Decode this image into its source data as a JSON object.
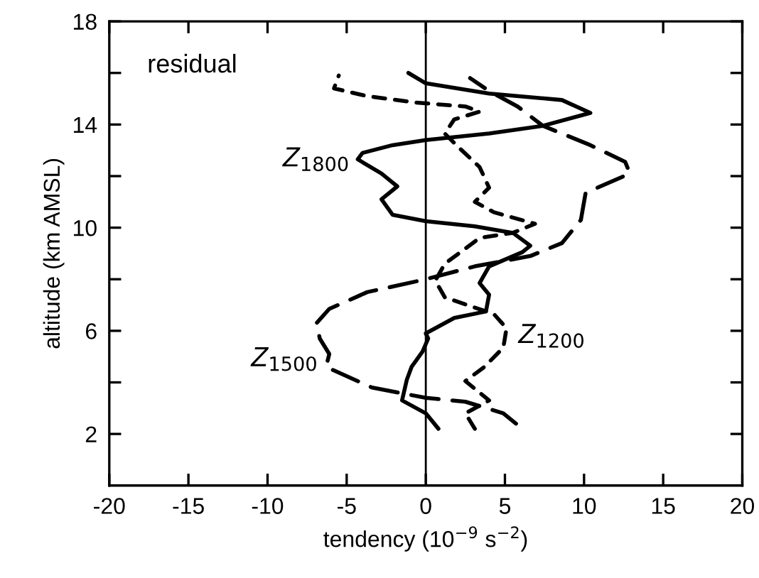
{
  "chart_data": {
    "type": "line",
    "xlabel": "tendency (10$^{−9}$ s$^{−2}$)",
    "ylabel": "altitude (km AMSL)",
    "xlim": [
      -20,
      20
    ],
    "xticks": [
      -20,
      -15,
      -10,
      -5,
      0,
      5,
      10,
      15,
      20
    ],
    "ylim": [
      0,
      18
    ],
    "yticks": [
      2,
      {
        "value": 4,
        "label": null
      },
      6,
      {
        "value": 8,
        "label": null
      },
      10,
      {
        "value": 12,
        "label": null
      },
      14,
      {
        "value": 16,
        "label": null
      },
      18
    ],
    "grid": false,
    "marker": "none",
    "ref_lines": [
      {
        "axis": "x",
        "value": 0,
        "color": "#000000",
        "line_style": "solid"
      }
    ],
    "annotations": [
      "residual",
      {
        "text": "Z$_{1800}$",
        "x": -4.3,
        "y": 12.65
      },
      {
        "text": "Z$_{1500}$",
        "x": -6.3,
        "y": 4.9
      },
      {
        "text": "Z$_{1200}$",
        "x": 5.1,
        "y": 5.8
      }
    ],
    "series": [
      {
        "color": "#000000",
        "line_style": "solid",
        "x": [
          0.8,
          0,
          -1.5,
          -1.2,
          -0.9,
          -0.2,
          0.15,
          0,
          1.8,
          3.8,
          4.0,
          3.4,
          4.0,
          6.1,
          6.6,
          5.5,
          3.1,
          0,
          -2.1,
          -2.8,
          -1.8,
          -2.8,
          -4.3,
          -4.0,
          -2.1,
          0,
          4.0,
          7.4,
          10.4,
          8.6,
          4.0,
          0,
          -1.1
        ],
        "values": [
          2.2,
          2.8,
          3.3,
          4.1,
          4.6,
          5.2,
          5.7,
          5.9,
          6.5,
          6.75,
          7.4,
          7.85,
          8.5,
          9.05,
          9.3,
          9.8,
          10.05,
          10.25,
          10.5,
          11.1,
          11.6,
          12.1,
          12.65,
          12.9,
          13.2,
          13.4,
          13.65,
          13.95,
          14.45,
          14.95,
          15.2,
          15.6,
          16.0
        ]
      },
      {
        "color": "#000000",
        "line_style": "dashed",
        "x": [
          5.7,
          4.9,
          2.5,
          0,
          -3.4,
          -6.3,
          -6.1,
          -6.7,
          -6.9,
          -6.1,
          -3.7,
          0,
          3.1,
          6.6,
          8.6,
          9.8,
          10.1,
          12.9,
          12.6,
          10.4,
          7.4,
          5.8,
          4.0,
          2.8
        ],
        "values": [
          2.4,
          2.8,
          3.25,
          3.4,
          3.8,
          4.6,
          5.1,
          5.7,
          6.3,
          6.85,
          7.5,
          8.0,
          8.5,
          8.9,
          9.4,
          10.3,
          11.35,
          12.1,
          12.55,
          13.2,
          13.95,
          14.7,
          15.3,
          15.8
        ]
      },
      {
        "color": "#000000",
        "line_style": "dotted",
        "x": [
          3.1,
          2.5,
          4.0,
          2.5,
          3.7,
          4.9,
          5.1,
          4.3,
          1.2,
          0.6,
          1.2,
          3.4,
          5.5,
          6.9,
          4.3,
          3.1,
          4.0,
          3.4,
          2.1,
          1.2,
          1.8,
          3.4,
          2.5,
          -0.6,
          -3.7,
          -5.8,
          -5.5
        ],
        "values": [
          2.2,
          2.8,
          3.3,
          4.05,
          4.6,
          5.35,
          6.1,
          6.65,
          7.3,
          7.95,
          8.6,
          9.6,
          9.8,
          10.15,
          10.6,
          11.0,
          11.55,
          12.35,
          13.1,
          13.65,
          14.2,
          14.5,
          14.7,
          14.85,
          15.1,
          15.4,
          15.9
        ]
      }
    ]
  }
}
